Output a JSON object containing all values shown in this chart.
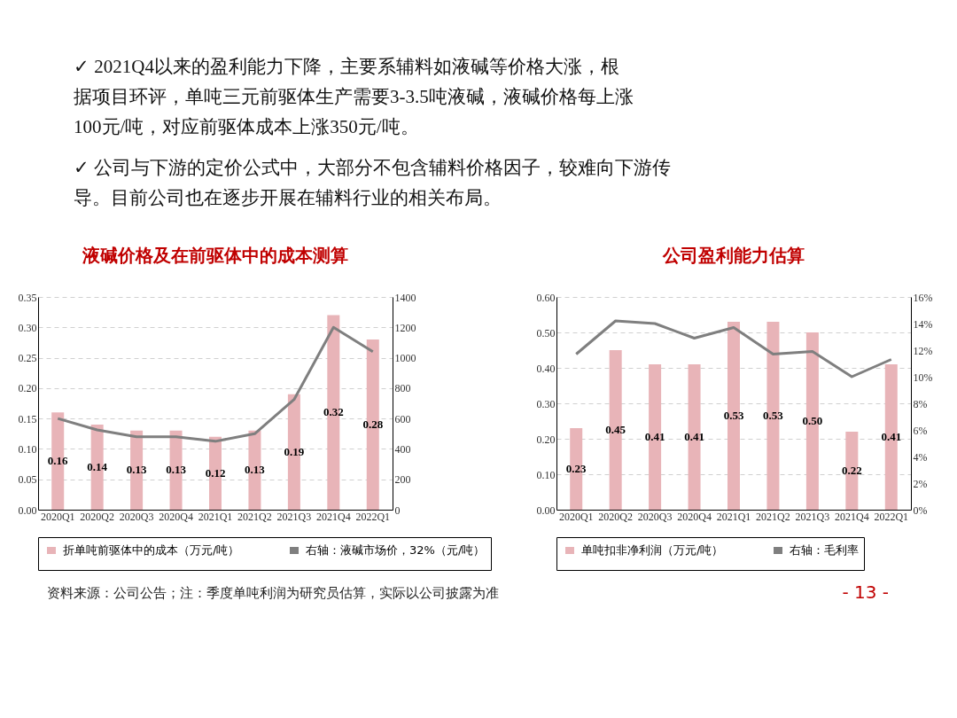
{
  "chart_data": [
    {
      "type": "other",
      "annotations": [
        "✓ 2021Q4以来的盈利能力下降，主要系辅料如液碱等价格大涨，根据项目环评，单吨三元前驱体生产需要3-3.5吨液碱，液碱价格每上涨100元/吨，对应前驱体成本上涨350元/吨。",
        "✓ 公司与下游的定价公式中，大部分不包含辅料价格因子，较难向下游传导。目前公司也在逐步开展在辅料行业的相关布局。"
      ]
    },
    {
      "type": "bar",
      "title": "液碱价格及在前驱体中的成本测算",
      "categories": [
        "2020Q1",
        "2020Q2",
        "2020Q3",
        "2020Q4",
        "2021Q1",
        "2021Q2",
        "2021Q3",
        "2021Q4",
        "2022Q1"
      ],
      "series": [
        {
          "name": "折单吨前驱体中的成本（万元/吨）",
          "color": "#e8b4b8",
          "values": [
            0.16,
            0.14,
            0.13,
            0.13,
            0.12,
            0.13,
            0.19,
            0.32,
            0.28
          ],
          "value_labels": [
            "0.16",
            "0.14",
            "0.13",
            "0.13",
            "0.12",
            "0.13",
            "0.19",
            "0.32",
            "0.28"
          ]
        },
        {
          "name": "右轴：液碱市场价，32%（元/吨）",
          "type": "line",
          "axis": "y2",
          "color": "#7f7f7f",
          "values": [
            600,
            525,
            480,
            480,
            450,
            500,
            725,
            1200,
            1040
          ]
        }
      ],
      "ylim": [
        0,
        0.35
      ],
      "yticks": [
        {
          "value": 0,
          "label": "0.00"
        },
        {
          "value": 0.05,
          "label": "0.05"
        },
        {
          "value": 0.1,
          "label": "0.10"
        },
        {
          "value": 0.15,
          "label": "0.15"
        },
        {
          "value": 0.2,
          "label": "0.20"
        },
        {
          "value": 0.25,
          "label": "0.25"
        },
        {
          "value": 0.3,
          "label": "0.30"
        },
        {
          "value": 0.35,
          "label": "0.35"
        }
      ],
      "y2lim": [
        0,
        1400
      ],
      "y2ticks": [
        0,
        200,
        400,
        600,
        800,
        1000,
        1200,
        1400
      ],
      "grid": "y",
      "legend": "bottom"
    },
    {
      "type": "bar",
      "title": "公司盈利能力估算",
      "categories": [
        "2020Q1",
        "2020Q2",
        "2020Q3",
        "2020Q4",
        "2021Q1",
        "2021Q2",
        "2021Q3",
        "2021Q4",
        "2022Q1"
      ],
      "series": [
        {
          "name": "单吨扣非净利润（万元/吨）",
          "color": "#e8b4b8",
          "values": [
            0.23,
            0.45,
            0.41,
            0.41,
            0.53,
            0.53,
            0.5,
            0.22,
            0.41
          ],
          "value_labels": [
            "0.23",
            "0.45",
            "0.41",
            "0.41",
            "0.53",
            "0.53",
            "0.50",
            "0.22",
            "0.41"
          ]
        },
        {
          "name": "右轴：毛利率",
          "type": "line",
          "axis": "y2",
          "color": "#7f7f7f",
          "values": [
            11.7,
            14.2,
            14.0,
            12.9,
            13.7,
            11.7,
            11.9,
            10.0,
            11.3
          ]
        }
      ],
      "ylim": [
        0,
        0.6
      ],
      "yticks": [
        {
          "value": 0,
          "label": "0.00"
        },
        {
          "value": 0.1,
          "label": "0.10"
        },
        {
          "value": 0.2,
          "label": "0.20"
        },
        {
          "value": 0.3,
          "label": "0.30"
        },
        {
          "value": 0.4,
          "label": "0.40"
        },
        {
          "value": 0.5,
          "label": "0.50"
        },
        {
          "value": 0.6,
          "label": "0.60"
        }
      ],
      "y2lim": [
        0,
        16
      ],
      "y2ticks": [
        {
          "value": 0,
          "label": "0%"
        },
        {
          "value": 2,
          "label": "2%"
        },
        {
          "value": 4,
          "label": "4%"
        },
        {
          "value": 6,
          "label": "6%"
        },
        {
          "value": 8,
          "label": "8%"
        },
        {
          "value": 10,
          "label": "10%"
        },
        {
          "value": 12,
          "label": "12%"
        },
        {
          "value": 14,
          "label": "14%"
        },
        {
          "value": 16,
          "label": "16%"
        }
      ],
      "grid": "y",
      "legend": "bottom"
    },
    {
      "type": "other",
      "annotations": [
        "资料来源：公司公告；注：季度单吨利润为研究员估算，实际以公司披露为准",
        "- 13 -"
      ]
    }
  ]
}
